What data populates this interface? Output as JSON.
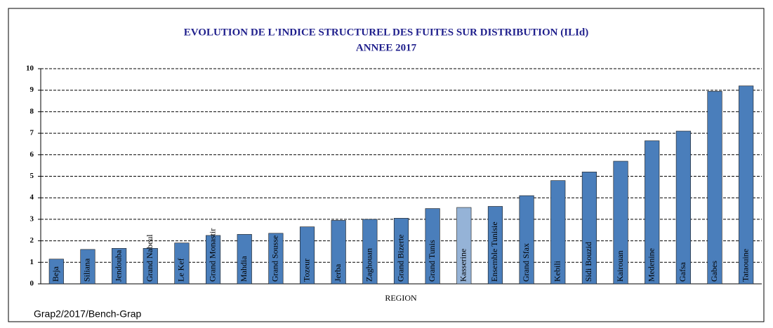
{
  "chart_data": {
    "type": "bar",
    "title": "EVOLUTION DE L'INDICE STRUCTUREL  DES FUITES SUR DISTRIBUTION (ILId)",
    "subtitle": "ANNEE 2017",
    "x_label": "REGION",
    "footnote": "Grap2/2017/Bench-Grap",
    "categories": [
      "Beja",
      "Siliana",
      "Jendouba",
      "Grand Nabeul",
      "Le Kef",
      "Grand Monastir",
      "Mahdia",
      "Grand Sousse",
      "Tozeur",
      "Jerba",
      "Zaghouan",
      "Grand Bizerte",
      "Grand Tunis",
      "Kasserine",
      "Ensemble Tunisie",
      "Grand Sfax",
      "Kebili",
      "Sidi Bouzid",
      "Kairouan",
      "Medenine",
      "Gafsa",
      "Gabes",
      "Tataouine"
    ],
    "values": [
      1.15,
      1.6,
      1.65,
      1.65,
      1.9,
      2.25,
      2.3,
      2.35,
      2.65,
      2.95,
      3.0,
      3.05,
      3.5,
      3.55,
      3.6,
      4.1,
      4.8,
      5.2,
      5.7,
      6.65,
      7.1,
      8.95,
      9.2
    ],
    "colors": [
      "#4a7ebb",
      "#4a7ebb",
      "#4a7ebb",
      "#4a7ebb",
      "#4a7ebb",
      "#4a7ebb",
      "#4a7ebb",
      "#4a7ebb",
      "#4a7ebb",
      "#4a7ebb",
      "#4a7ebb",
      "#4a7ebb",
      "#4a7ebb",
      "#95b3d7",
      "#4a7ebb",
      "#4a7ebb",
      "#4a7ebb",
      "#4a7ebb",
      "#4a7ebb",
      "#4a7ebb",
      "#4a7ebb",
      "#4a7ebb",
      "#4a7ebb"
    ],
    "ylim": [
      0,
      10
    ],
    "yticks": [
      0,
      1,
      2,
      3,
      4,
      5,
      6,
      7,
      8,
      9,
      10
    ],
    "grid": true
  }
}
